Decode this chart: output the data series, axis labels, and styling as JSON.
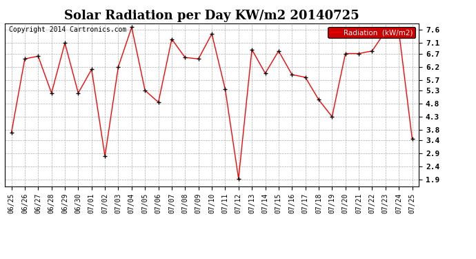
{
  "title": "Solar Radiation per Day KW/m2 20140725",
  "copyright": "Copyright 2014 Cartronics.com",
  "legend_label": "Radiation  (kW/m2)",
  "dates": [
    "06/25",
    "06/26",
    "06/27",
    "06/28",
    "06/29",
    "06/30",
    "07/01",
    "07/02",
    "07/03",
    "07/04",
    "07/05",
    "07/06",
    "07/07",
    "07/08",
    "07/09",
    "07/10",
    "07/11",
    "07/12",
    "07/13",
    "07/14",
    "07/15",
    "07/16",
    "07/17",
    "07/18",
    "07/19",
    "07/20",
    "07/21",
    "07/22",
    "07/23",
    "07/24",
    "07/25"
  ],
  "values": [
    3.7,
    6.5,
    6.6,
    5.2,
    7.1,
    5.2,
    6.1,
    2.8,
    6.2,
    7.7,
    5.3,
    4.85,
    7.25,
    6.55,
    6.5,
    7.45,
    5.35,
    1.95,
    6.85,
    5.95,
    6.8,
    5.9,
    5.8,
    4.95,
    4.3,
    6.7,
    6.7,
    6.8,
    7.55,
    7.55,
    3.45
  ],
  "line_color": "#ff0000",
  "marker_color": "#000000",
  "background_color": "#ffffff",
  "plot_bg_color": "#ffffff",
  "grid_color": "#999999",
  "yticks": [
    1.9,
    2.4,
    2.9,
    3.4,
    3.8,
    4.3,
    4.8,
    5.3,
    5.7,
    6.2,
    6.7,
    7.1,
    7.6
  ],
  "ylim": [
    1.65,
    7.85
  ],
  "title_fontsize": 13,
  "legend_bg_color": "#cc0000",
  "legend_text_color": "#ffffff",
  "copyright_fontsize": 7,
  "tick_fontsize": 7,
  "ytick_fontsize": 8
}
